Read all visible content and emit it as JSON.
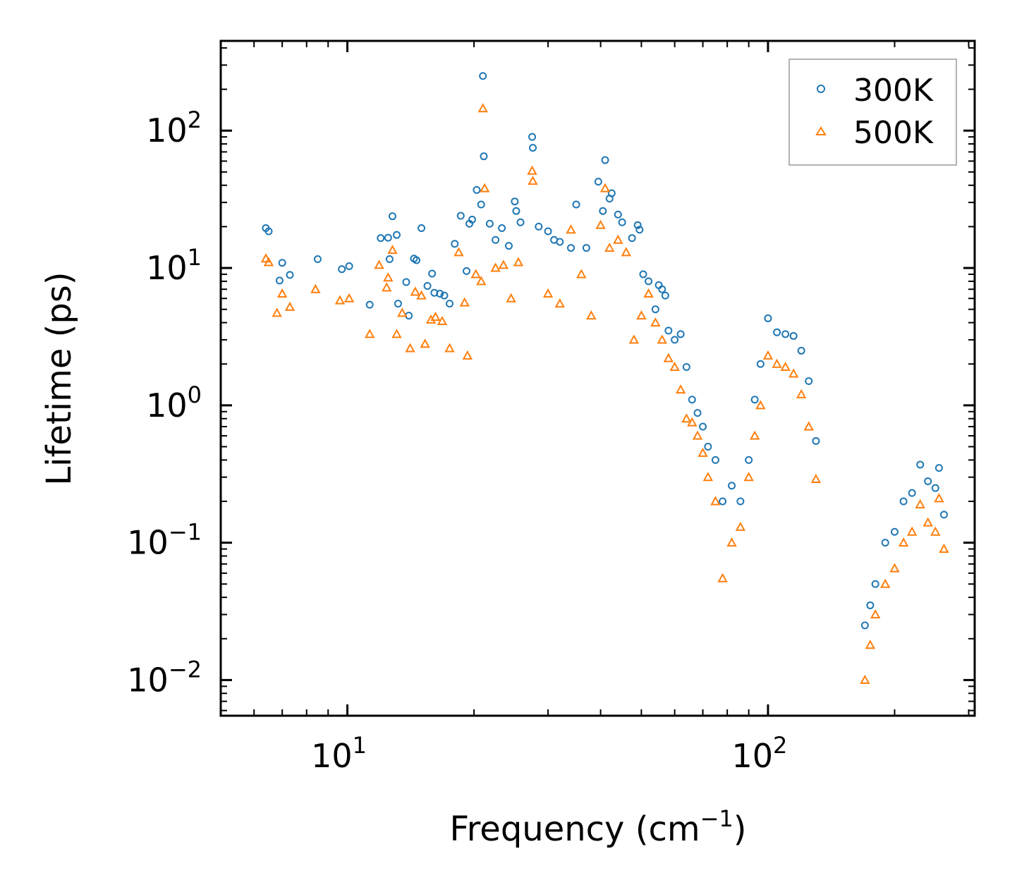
{
  "chart_data": {
    "type": "scatter",
    "title": "",
    "xlabel": "Frequency (cm",
    "xlabel_sup": "−1",
    "xlabel_close": ")",
    "ylabel": "Lifetime (ps)",
    "xscale": "log",
    "yscale": "log",
    "xlim": [
      5,
      310
    ],
    "ylim": [
      0.0055,
      450
    ],
    "x_ticks": [
      {
        "value": 10,
        "base": "10",
        "exp": "1"
      },
      {
        "value": 100,
        "base": "10",
        "exp": "2"
      }
    ],
    "y_ticks": [
      {
        "value": 0.01,
        "base": "10",
        "exp": "−2"
      },
      {
        "value": 0.1,
        "base": "10",
        "exp": "−1"
      },
      {
        "value": 1,
        "base": "10",
        "exp": "0"
      },
      {
        "value": 10,
        "base": "10",
        "exp": "1"
      },
      {
        "value": 100,
        "base": "10",
        "exp": "2"
      }
    ],
    "legend": {
      "position": "top-right"
    },
    "series": [
      {
        "name": "300K",
        "marker": "circle",
        "color": "#1f77b4",
        "points": [
          [
            6.4,
            19.5
          ],
          [
            6.5,
            18.5
          ],
          [
            6.9,
            8.1
          ],
          [
            7.0,
            10.9
          ],
          [
            7.3,
            8.9
          ],
          [
            8.5,
            11.6
          ],
          [
            9.7,
            9.8
          ],
          [
            10.1,
            10.3
          ],
          [
            11.3,
            5.4
          ],
          [
            12.0,
            16.5
          ],
          [
            12.5,
            16.6
          ],
          [
            12.6,
            11.6
          ],
          [
            12.8,
            23.8
          ],
          [
            13.1,
            17.4
          ],
          [
            13.2,
            5.5
          ],
          [
            13.8,
            7.9
          ],
          [
            14.0,
            4.5
          ],
          [
            14.4,
            11.7
          ],
          [
            14.6,
            11.4
          ],
          [
            15.0,
            19.5
          ],
          [
            15.5,
            7.4
          ],
          [
            15.9,
            9.1
          ],
          [
            16.1,
            6.6
          ],
          [
            16.6,
            6.5
          ],
          [
            17.0,
            6.3
          ],
          [
            17.5,
            5.5
          ],
          [
            18.0,
            15.0
          ],
          [
            18.6,
            24.0
          ],
          [
            19.2,
            9.5
          ],
          [
            19.5,
            21.0
          ],
          [
            19.8,
            22.5
          ],
          [
            20.3,
            37.0
          ],
          [
            20.8,
            29.0
          ],
          [
            21.0,
            250.0
          ],
          [
            21.1,
            65.0
          ],
          [
            21.8,
            21.0
          ],
          [
            22.5,
            16.0
          ],
          [
            23.3,
            19.5
          ],
          [
            24.2,
            14.5
          ],
          [
            25.0,
            30.5
          ],
          [
            25.2,
            26.0
          ],
          [
            25.8,
            21.5
          ],
          [
            27.5,
            90.0
          ],
          [
            27.6,
            75.0
          ],
          [
            28.5,
            20.0
          ],
          [
            30.0,
            18.5
          ],
          [
            31.0,
            16.0
          ],
          [
            32.0,
            15.5
          ],
          [
            34.0,
            14.0
          ],
          [
            35.0,
            29.0
          ],
          [
            37.0,
            14.0
          ],
          [
            39.5,
            42.5
          ],
          [
            40.5,
            26.0
          ],
          [
            41.0,
            61.0
          ],
          [
            42.0,
            32.0
          ],
          [
            42.5,
            35.0
          ],
          [
            44.0,
            24.5
          ],
          [
            45.0,
            21.5
          ],
          [
            47.5,
            16.5
          ],
          [
            49.0,
            20.5
          ],
          [
            49.5,
            19.0
          ],
          [
            50.5,
            9.0
          ],
          [
            52.0,
            8.0
          ],
          [
            54.0,
            5.0
          ],
          [
            55.0,
            7.5
          ],
          [
            56.0,
            7.0
          ],
          [
            57.0,
            6.3
          ],
          [
            58.0,
            3.5
          ],
          [
            60.0,
            3.0
          ],
          [
            62.0,
            3.3
          ],
          [
            64.0,
            1.9
          ],
          [
            66.0,
            1.1
          ],
          [
            68.0,
            0.88
          ],
          [
            70.0,
            0.7
          ],
          [
            72.0,
            0.5
          ],
          [
            75.0,
            0.4
          ],
          [
            78.0,
            0.2
          ],
          [
            82.0,
            0.26
          ],
          [
            86.0,
            0.2
          ],
          [
            90.0,
            0.4
          ],
          [
            93.0,
            1.1
          ],
          [
            96.0,
            2.0
          ],
          [
            100.0,
            4.3
          ],
          [
            105.0,
            3.4
          ],
          [
            110.0,
            3.3
          ],
          [
            115.0,
            3.2
          ],
          [
            120.0,
            2.5
          ],
          [
            125.0,
            1.5
          ],
          [
            130.0,
            0.55
          ],
          [
            170.0,
            0.025
          ],
          [
            175.0,
            0.035
          ],
          [
            180.0,
            0.05
          ],
          [
            190.0,
            0.1
          ],
          [
            200.0,
            0.12
          ],
          [
            210.0,
            0.2
          ],
          [
            220.0,
            0.23
          ],
          [
            230.0,
            0.37
          ],
          [
            240.0,
            0.28
          ],
          [
            250.0,
            0.25
          ],
          [
            255.0,
            0.35
          ],
          [
            262.0,
            0.16
          ]
        ]
      },
      {
        "name": "500K",
        "marker": "triangle",
        "color": "#ff7f0e",
        "points": [
          [
            6.4,
            11.7
          ],
          [
            6.5,
            11.0
          ],
          [
            6.8,
            4.7
          ],
          [
            7.0,
            6.5
          ],
          [
            7.3,
            5.2
          ],
          [
            8.4,
            7.0
          ],
          [
            9.6,
            5.8
          ],
          [
            10.1,
            6.0
          ],
          [
            11.3,
            3.3
          ],
          [
            11.9,
            10.5
          ],
          [
            12.4,
            7.2
          ],
          [
            12.5,
            8.5
          ],
          [
            12.8,
            13.5
          ],
          [
            13.1,
            3.3
          ],
          [
            13.5,
            4.7
          ],
          [
            14.1,
            2.6
          ],
          [
            14.5,
            6.7
          ],
          [
            15.0,
            6.3
          ],
          [
            15.3,
            2.8
          ],
          [
            15.8,
            4.2
          ],
          [
            16.2,
            4.4
          ],
          [
            16.8,
            4.1
          ],
          [
            17.5,
            2.6
          ],
          [
            18.4,
            13.0
          ],
          [
            19.0,
            5.6
          ],
          [
            19.3,
            2.3
          ],
          [
            20.2,
            9.0
          ],
          [
            20.8,
            8.0
          ],
          [
            21.0,
            145.0
          ],
          [
            21.2,
            38.0
          ],
          [
            22.5,
            10.0
          ],
          [
            23.5,
            10.5
          ],
          [
            24.5,
            6.0
          ],
          [
            25.5,
            11.0
          ],
          [
            27.5,
            51.0
          ],
          [
            27.6,
            43.0
          ],
          [
            30.0,
            6.5
          ],
          [
            32.0,
            5.5
          ],
          [
            34.0,
            19.0
          ],
          [
            36.0,
            9.0
          ],
          [
            38.0,
            4.5
          ],
          [
            40.0,
            20.5
          ],
          [
            41.0,
            38.0
          ],
          [
            42.0,
            14.0
          ],
          [
            44.0,
            16.0
          ],
          [
            46.0,
            13.0
          ],
          [
            48.0,
            3.0
          ],
          [
            50.0,
            4.5
          ],
          [
            52.0,
            6.5
          ],
          [
            54.0,
            4.0
          ],
          [
            56.0,
            3.0
          ],
          [
            58.0,
            2.2
          ],
          [
            60.0,
            1.9
          ],
          [
            62.0,
            1.3
          ],
          [
            64.0,
            0.8
          ],
          [
            66.0,
            0.75
          ],
          [
            68.0,
            0.6
          ],
          [
            70.0,
            0.45
          ],
          [
            72.0,
            0.3
          ],
          [
            75.0,
            0.2
          ],
          [
            78.0,
            0.055
          ],
          [
            82.0,
            0.1
          ],
          [
            86.0,
            0.13
          ],
          [
            90.0,
            0.3
          ],
          [
            93.0,
            0.6
          ],
          [
            96.0,
            1.0
          ],
          [
            100.0,
            2.3
          ],
          [
            105.0,
            2.0
          ],
          [
            110.0,
            1.9
          ],
          [
            115.0,
            1.7
          ],
          [
            120.0,
            1.2
          ],
          [
            125.0,
            0.7
          ],
          [
            130.0,
            0.29
          ],
          [
            170.0,
            0.01
          ],
          [
            175.0,
            0.018
          ],
          [
            180.0,
            0.03
          ],
          [
            190.0,
            0.05
          ],
          [
            200.0,
            0.065
          ],
          [
            210.0,
            0.1
          ],
          [
            220.0,
            0.12
          ],
          [
            230.0,
            0.19
          ],
          [
            240.0,
            0.14
          ],
          [
            250.0,
            0.12
          ],
          [
            255.0,
            0.21
          ],
          [
            262.0,
            0.09
          ]
        ]
      }
    ]
  }
}
